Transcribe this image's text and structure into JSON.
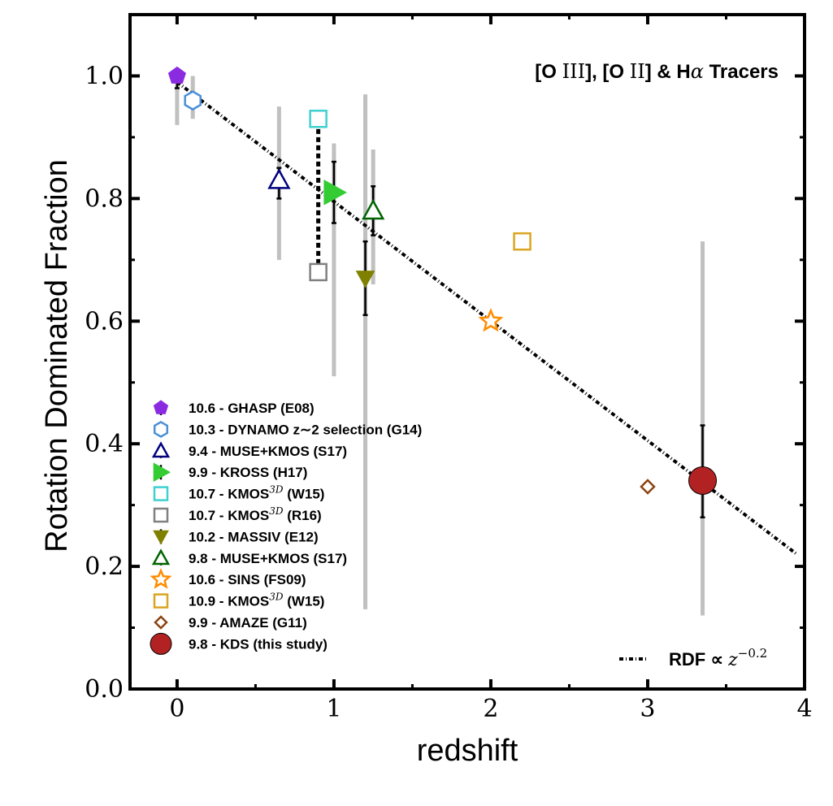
{
  "chart_data": {
    "type": "scatter",
    "title": "",
    "annotation": "[O III], [O II] & Hα Tracers",
    "xlabel": "redshift",
    "ylabel": "Rotation Dominated Fraction",
    "xlim": [
      -0.3,
      4.0
    ],
    "ylim": [
      0.0,
      1.1
    ],
    "xticks": [
      0,
      1,
      2,
      3,
      4
    ],
    "yticks": [
      0.0,
      0.2,
      0.4,
      0.6,
      0.8,
      1.0
    ],
    "xtick_labels": [
      "0",
      "1",
      "2",
      "3",
      "4"
    ],
    "ytick_labels": [
      "0.0",
      "0.2",
      "0.4",
      "0.6",
      "0.8",
      "1.0"
    ],
    "legend_position": "lower-left",
    "series": [
      {
        "name": "10.6 - GHASP (E08)",
        "marker": "pentagon",
        "color": "#8a2be2",
        "filled": true,
        "x": 0.0,
        "y": 1.0,
        "yerr": [
          0.98,
          1.0
        ],
        "range": [
          0.92,
          1.0
        ]
      },
      {
        "name": "10.3 - DYNAMO z∼2 selection (G14)",
        "marker": "hexagon",
        "color": "#4a90d9",
        "filled": false,
        "x": 0.1,
        "y": 0.96,
        "yerr": null,
        "range": [
          0.93,
          1.0
        ]
      },
      {
        "name": "9.4 - MUSE+KMOS (S17)",
        "marker": "triangle-up",
        "color": "#000080",
        "filled": false,
        "x": 0.65,
        "y": 0.83,
        "yerr": [
          0.8,
          0.85
        ],
        "range": [
          0.7,
          0.95
        ]
      },
      {
        "name": "9.9 - KROSS (H17)",
        "marker": "triangle-right",
        "color": "#33cc33",
        "filled": true,
        "x": 1.0,
        "y": 0.81,
        "yerr": [
          0.76,
          0.86
        ],
        "range": [
          0.51,
          0.89
        ]
      },
      {
        "name": "10.7 - KMOS3D (W15)",
        "marker": "square",
        "color": "#40d0d0",
        "filled": false,
        "x": 0.9,
        "y": 0.93,
        "yerr": null,
        "range": null
      },
      {
        "name": "10.7 - KMOS3D (R16)",
        "marker": "square",
        "color": "#808080",
        "filled": false,
        "x": 0.9,
        "y": 0.68,
        "yerr": null,
        "range": null
      },
      {
        "name": "10.2 - MASSIV (E12)",
        "marker": "triangle-down",
        "color": "#808000",
        "filled": true,
        "x": 1.2,
        "y": 0.67,
        "yerr": [
          0.61,
          0.73
        ],
        "range": [
          0.13,
          0.97
        ]
      },
      {
        "name": "9.8 - MUSE+KMOS (S17)",
        "marker": "triangle-up",
        "color": "#006400",
        "filled": false,
        "x": 1.25,
        "y": 0.78,
        "yerr": [
          0.74,
          0.82
        ],
        "range": [
          0.66,
          0.88
        ]
      },
      {
        "name": "10.6 - SINS (FS09)",
        "marker": "star",
        "color": "#ff8c00",
        "filled": false,
        "x": 2.0,
        "y": 0.6,
        "yerr": null,
        "range": null
      },
      {
        "name": "10.9 - KMOS3D (W15)",
        "marker": "square",
        "color": "#daa520",
        "filled": false,
        "x": 2.2,
        "y": 0.73,
        "yerr": null,
        "range": null
      },
      {
        "name": "9.9 - AMAZE (G11)",
        "marker": "diamond",
        "color": "#8b4513",
        "filled": false,
        "x": 3.0,
        "y": 0.33,
        "yerr": null,
        "range": null
      },
      {
        "name": "9.8 - KDS (this study)",
        "marker": "circle",
        "color": "#b22222",
        "filled": true,
        "x": 3.35,
        "y": 0.34,
        "yerr": [
          0.28,
          0.43
        ],
        "range": [
          0.12,
          0.73
        ]
      }
    ],
    "fit": {
      "label": "RDF ∝ z^{-0.2}",
      "x": [
        0.0,
        3.95
      ],
      "y": [
        0.99,
        0.22
      ]
    },
    "connector": {
      "x": 0.9,
      "y": [
        0.68,
        0.93
      ]
    }
  },
  "legend": {
    "labels": [
      "10.6 - GHASP (E08)",
      "10.3 - DYNAMO z∼2 selection (G14)",
      "9.4 - MUSE+KMOS (S17)",
      "9.9 - KROSS (H17)",
      "10.7 - KMOS",
      "10.7 - KMOS",
      "10.2 - MASSIV (E12)",
      "9.8 - MUSE+KMOS (S17)",
      "10.6 - SINS (FS09)",
      "10.9 - KMOS",
      "9.9 - AMAZE (G11)",
      "9.8 - KDS (this study)"
    ],
    "suffixes": [
      "",
      "",
      "",
      "",
      " (W15)",
      " (R16)",
      "",
      "",
      "",
      " (W15)",
      "",
      ""
    ],
    "superscript": "3D"
  },
  "annotation": {
    "part1": "[O ",
    "part2": "III",
    "part3": "], [O ",
    "part4": "II",
    "part5": "] & H",
    "part6": "α",
    "part7": " Tracers"
  },
  "fit_label": {
    "prefix": "RDF ∝ ",
    "z": "z",
    "exponent": "−0.2"
  }
}
